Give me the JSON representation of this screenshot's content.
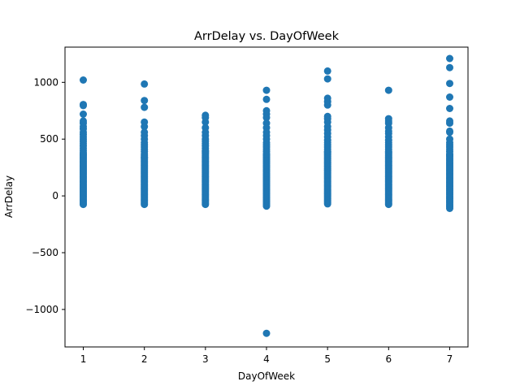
{
  "chart_data": {
    "type": "scatter",
    "title": "ArrDelay vs. DayOfWeek",
    "xlabel": "DayOfWeek",
    "ylabel": "ArrDelay",
    "xlim": [
      0.7,
      7.3
    ],
    "ylim": [
      -1330,
      1310
    ],
    "xticks": [
      1,
      2,
      3,
      4,
      5,
      6,
      7
    ],
    "yticks": [
      -1000,
      -500,
      0,
      500,
      1000
    ],
    "ytick_labels": [
      "−1000",
      "−500",
      "0",
      "500",
      "1000"
    ],
    "grid": false,
    "legend": "none",
    "marker_color": "#1f77b4",
    "series": [
      {
        "columns": [
          {
            "x": 1,
            "dense_range": [
              -75,
              360
            ],
            "points": [
              1020,
              805,
              795,
              720,
              660,
              640,
              610,
              590,
              560,
              540,
              520,
              500,
              480,
              460,
              440,
              420,
              400,
              380,
              370
            ]
          },
          {
            "x": 2,
            "dense_range": [
              -75,
              340
            ],
            "points": [
              985,
              840,
              780,
              650,
              610,
              560,
              530,
              500,
              470,
              450,
              430,
              410,
              390,
              370,
              355
            ]
          },
          {
            "x": 3,
            "dense_range": [
              -75,
              380
            ],
            "points": [
              710,
              690,
              650,
              600,
              560,
              530,
              500,
              480,
              460,
              440,
              420,
              400,
              390
            ]
          },
          {
            "x": 4,
            "dense_range": [
              -90,
              370
            ],
            "points": [
              930,
              850,
              750,
              720,
              690,
              640,
              600,
              560,
              530,
              500,
              470,
              450,
              430,
              410,
              390,
              -1210
            ]
          },
          {
            "x": 5,
            "dense_range": [
              -70,
              390
            ],
            "points": [
              1100,
              1030,
              860,
              830,
              800,
              700,
              680,
              650,
              610,
              580,
              550,
              520,
              490,
              470,
              450,
              430,
              410
            ]
          },
          {
            "x": 6,
            "dense_range": [
              -75,
              390
            ],
            "points": [
              930,
              680,
              660,
              640,
              600,
              570,
              550,
              520,
              490,
              470,
              450,
              430,
              410
            ]
          },
          {
            "x": 7,
            "dense_range": [
              -110,
              360
            ],
            "points": [
              1210,
              1130,
              990,
              870,
              770,
              660,
              640,
              570,
              560,
              500,
              470,
              450,
              430,
              410,
              390,
              370
            ]
          }
        ]
      }
    ]
  }
}
